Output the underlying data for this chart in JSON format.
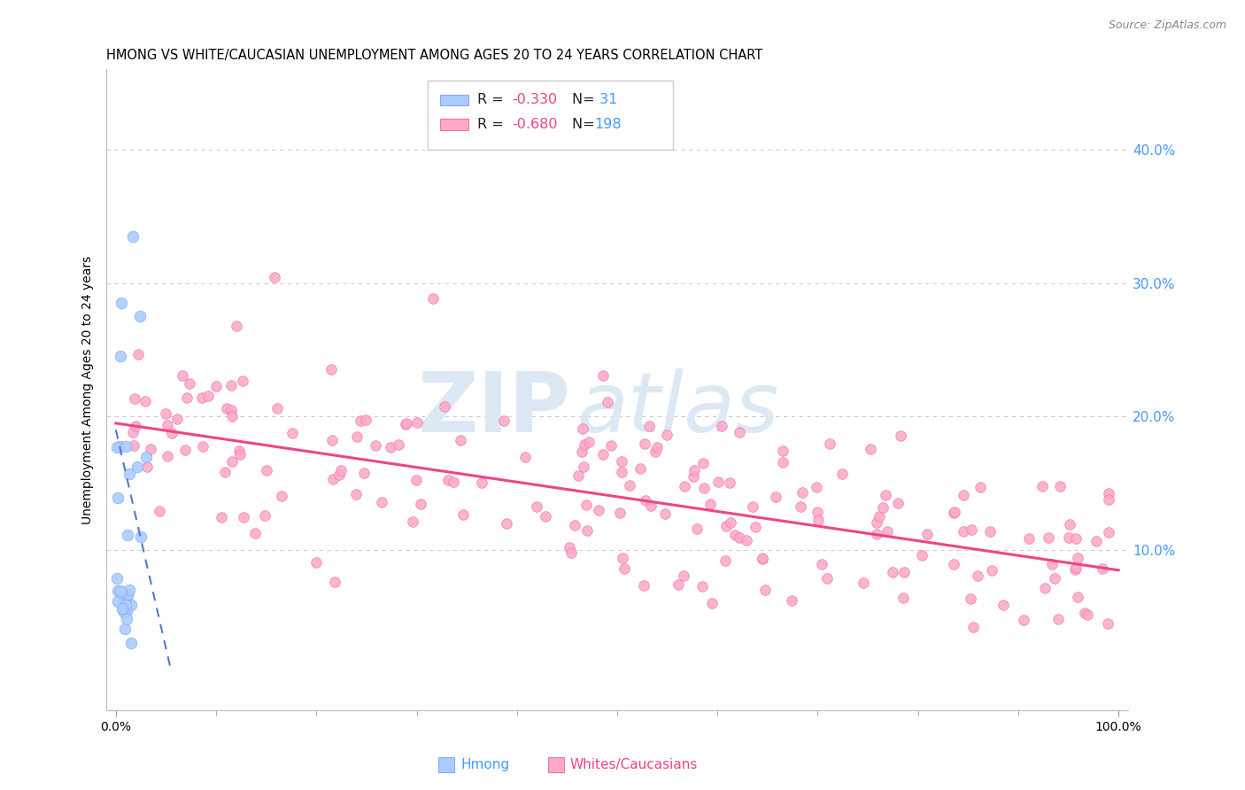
{
  "title": "HMONG VS WHITE/CAUCASIAN UNEMPLOYMENT AMONG AGES 20 TO 24 YEARS CORRELATION CHART",
  "source": "Source: ZipAtlas.com",
  "ylabel": "Unemployment Among Ages 20 to 24 years",
  "xlabel_ticks_show": [
    "0.0%",
    "100.0%"
  ],
  "xlabel_ticks_pos_show": [
    0.0,
    1.0
  ],
  "xlabel_minor_pos": [
    0.1,
    0.2,
    0.3,
    0.4,
    0.5,
    0.6,
    0.7,
    0.8,
    0.9
  ],
  "ytick_labels": [
    "10.0%",
    "20.0%",
    "30.0%",
    "40.0%"
  ],
  "ytick_positions": [
    0.1,
    0.2,
    0.3,
    0.4
  ],
  "xlim": [
    -0.01,
    1.01
  ],
  "ylim": [
    -0.02,
    0.46
  ],
  "background_color": "#ffffff",
  "grid_color": "#cccccc",
  "hmong_color": "#aaccff",
  "hmong_edge_color": "#88aaee",
  "white_color": "#ffaacc",
  "white_edge_color": "#ee7799",
  "hmong_line_color": "#5577cc",
  "white_line_color": "#ee4488",
  "watermark_zip": "ZIP",
  "watermark_atlas": "atlas",
  "watermark_color": "#dde8f5",
  "title_fontsize": 10.5,
  "source_fontsize": 9,
  "axis_label_fontsize": 10,
  "tick_fontsize": 10,
  "marker_size": 70,
  "hmong_N": 31,
  "white_N": 198,
  "seed": 77,
  "white_line_x": [
    0.0,
    1.0
  ],
  "white_line_y": [
    0.195,
    0.085
  ],
  "hmong_line_x": [
    0.0,
    0.055
  ],
  "hmong_line_y": [
    0.19,
    0.01
  ]
}
